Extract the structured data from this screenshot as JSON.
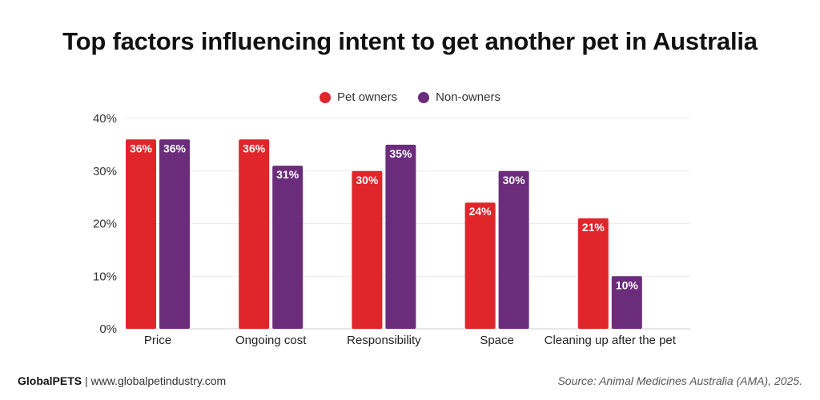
{
  "chart_data": {
    "type": "bar",
    "title": "Top factors influencing intent to get another pet in Australia",
    "categories": [
      "Price",
      "Ongoing cost",
      "Responsibility",
      "Space",
      "Cleaning up after the pet"
    ],
    "series": [
      {
        "name": "Pet owners",
        "color": "#e0262a",
        "values": [
          36,
          36,
          30,
          24,
          21
        ]
      },
      {
        "name": "Non-owners",
        "color": "#6b2d7b",
        "values": [
          36,
          31,
          35,
          30,
          10
        ]
      }
    ],
    "ylim": [
      0,
      40
    ],
    "yticks": [
      "0%",
      "10%",
      "20%",
      "30%",
      "40%"
    ],
    "value_suffix": "%",
    "legend_position": "top-center",
    "grid": true
  },
  "footer": {
    "brand": "GlobalPETS",
    "separator": " | ",
    "url": "www.globalpetindustry.com",
    "source": "Source: Animal Medicines Australia (AMA), 2025."
  }
}
